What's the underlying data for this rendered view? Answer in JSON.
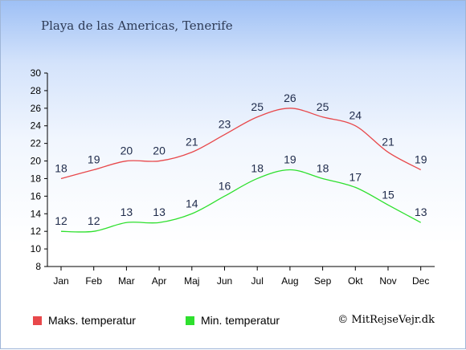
{
  "chart_data": {
    "type": "line",
    "title": "Playa de las Americas, Tenerife",
    "categories": [
      "Jan",
      "Feb",
      "Mar",
      "Apr",
      "Maj",
      "Jun",
      "Jul",
      "Aug",
      "Sep",
      "Okt",
      "Nov",
      "Dec"
    ],
    "ylim": [
      8,
      30
    ],
    "yticks": [
      8,
      10,
      12,
      14,
      16,
      18,
      20,
      22,
      24,
      26,
      28,
      30
    ],
    "series": [
      {
        "name": "Maks. temperatur",
        "color": "#e8484b",
        "values": [
          18,
          19,
          20,
          20,
          21,
          23,
          25,
          26,
          25,
          24,
          21,
          19
        ]
      },
      {
        "name": "Min. temperatur",
        "color": "#2ee02e",
        "values": [
          12,
          12,
          13,
          13,
          14,
          16,
          18,
          19,
          18,
          17,
          15,
          13
        ]
      }
    ],
    "legend_position": "bottom",
    "grid": false
  },
  "copyright": "© MitRejseVejr.dk"
}
